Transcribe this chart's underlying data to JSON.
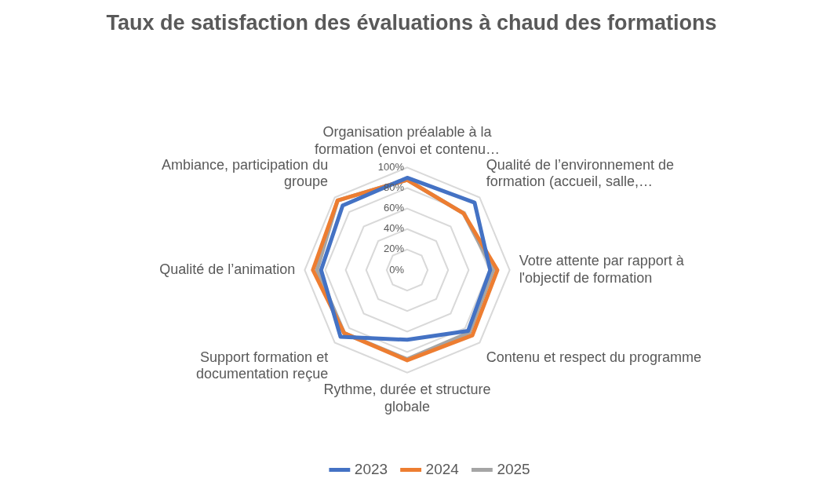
{
  "chart_data": {
    "type": "radar",
    "title": "Taux de satisfaction des évaluations à chaud des formations",
    "categories": [
      "Organisation préalable à la formation (envoi et contenu…",
      "Qualité de l’environnement de formation (accueil, salle,…",
      "Votre attente par rapport à l'objectif de formation",
      "Contenu et respect du programme",
      "Rythme, durée et structure globale",
      "Support formation et documentation reçue",
      "Qualité de l’animation",
      "Ambiance, participation du groupe"
    ],
    "series": [
      {
        "name": "2023",
        "color": "#4472c4",
        "values": [
          90,
          93,
          81,
          84,
          68,
          92,
          84,
          89
        ]
      },
      {
        "name": "2024",
        "color": "#ed7d31",
        "values": [
          88,
          78,
          88,
          90,
          88,
          87,
          92,
          96
        ]
      },
      {
        "name": "2025",
        "color": "#a5a5a5",
        "values": [
          88,
          78,
          84,
          86,
          87,
          87,
          88,
          96
        ]
      }
    ],
    "ylim": [
      0,
      100
    ],
    "yticks": [
      {
        "value": 0,
        "label": "0%"
      },
      {
        "value": 20,
        "label": "20%"
      },
      {
        "value": 40,
        "label": "40%"
      },
      {
        "value": 60,
        "label": "60%"
      },
      {
        "value": 80,
        "label": "80%"
      },
      {
        "value": 100,
        "label": "100%"
      }
    ],
    "grid": true,
    "legend": "bottom",
    "marker": "none",
    "line_style": "solid"
  }
}
